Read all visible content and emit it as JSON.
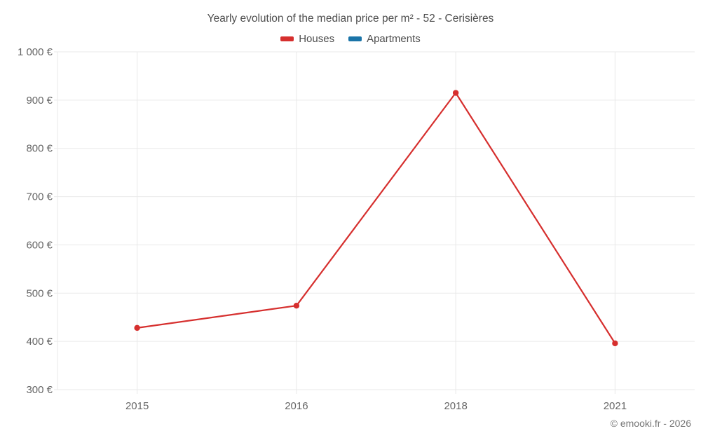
{
  "chart": {
    "title": "Yearly evolution of the median price per m² - 52 - Cerisières",
    "copyright": "© emooki.fr - 2026",
    "legend": [
      {
        "label": "Houses",
        "color": "#d62f2e"
      },
      {
        "label": "Apartments",
        "color": "#1a74a8"
      }
    ]
  },
  "chart_data": {
    "type": "line",
    "title": "Yearly evolution of the median price per m² - 52 - Cerisières",
    "categories": [
      "2015",
      "2016",
      "2018",
      "2021"
    ],
    "series": [
      {
        "name": "Houses",
        "color": "#d62f2e",
        "values": [
          428,
          474,
          915,
          396
        ]
      },
      {
        "name": "Apartments",
        "color": "#1a74a8",
        "values": [
          null,
          null,
          null,
          null
        ]
      }
    ],
    "xlabel": "",
    "ylabel": "",
    "ylim": [
      300,
      1000
    ],
    "ytick_step": 100,
    "ytick_suffix": " €",
    "grid": true,
    "legend_position": "top",
    "gridline_color": "#e9e9e9",
    "tick_label_color": "#666666"
  }
}
